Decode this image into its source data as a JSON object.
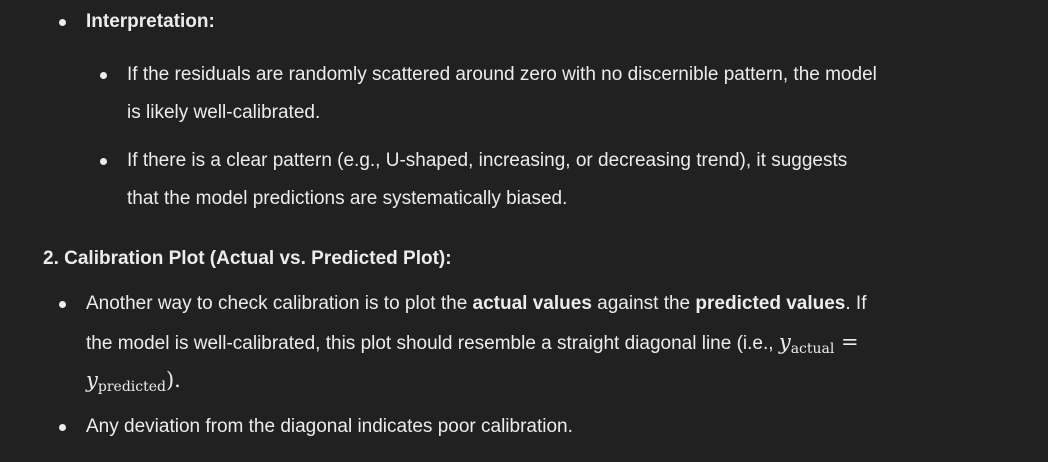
{
  "interpretation": {
    "heading": "Interpretation:",
    "items": [
      {
        "line1": "If the residuals are randomly scattered around zero with no discernible pattern, the model",
        "line2": "is likely well-calibrated."
      },
      {
        "line1": "If there is a clear pattern (e.g., U-shaped, increasing, or decreasing trend), it suggests",
        "line2": "that the model predictions are systematically biased."
      }
    ]
  },
  "section2": {
    "heading": "2. Calibration Plot (Actual vs. Predicted Plot):",
    "bullet1": {
      "part1": "Another way to check calibration is to plot the ",
      "bold1": "actual values",
      "part2": " against the ",
      "bold2": "predicted values",
      "part3": ". If",
      "line2": "the model is well-calibrated, this plot should resemble a straight diagonal line (i.e., ",
      "math_y": "y",
      "math_sub_actual": "actual",
      "math_eq": "=",
      "math_sub_predicted": "predicted",
      "math_close": ")",
      "math_period": "."
    },
    "bullet2": "Any deviation from the diagonal indicates poor calibration."
  }
}
